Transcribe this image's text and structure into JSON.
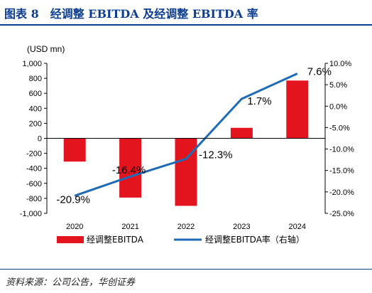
{
  "header": {
    "title": "图表 8　经调整 EBITDA 及经调整 EBITDA 率"
  },
  "footer": {
    "source": "资料来源：公司公告，华创证券"
  },
  "colors": {
    "bar": "#e3141d",
    "line": "#1e6bb8",
    "title": "#0b3d91"
  },
  "chart_data": {
    "type": "bar",
    "categories": [
      "2020",
      "2021",
      "2022",
      "2023",
      "2024"
    ],
    "series": [
      {
        "name": "经调整EBITDA",
        "type": "bar",
        "axis": "left",
        "values": [
          -310,
          -790,
          -900,
          140,
          770
        ]
      },
      {
        "name": "经调整EBITDA率（右轴）",
        "type": "line",
        "axis": "right",
        "values": [
          -20.9,
          -16.4,
          -12.3,
          1.7,
          7.6
        ],
        "labels": [
          "-20.9%",
          "-16.4%",
          "-12.3%",
          "1.7%",
          "7.6%"
        ]
      }
    ],
    "ylabel": "(USD mn)",
    "ylim": [
      -1000,
      1000
    ],
    "y_ticks": [
      -1000,
      -800,
      -600,
      -400,
      -200,
      0,
      200,
      400,
      600,
      800,
      1000
    ],
    "y_tick_labels": [
      "-1,000",
      "-800",
      "-600",
      "-400",
      "-200",
      "0",
      "200",
      "400",
      "600",
      "800",
      "1,000"
    ],
    "y2lim": [
      -25,
      10
    ],
    "y2_ticks": [
      -25,
      -20,
      -15,
      -10,
      -5,
      0,
      5,
      10
    ],
    "y2_tick_labels": [
      "-25.0%",
      "-20.0%",
      "-15.0%",
      "-10.0%",
      "-5.0%",
      "0.0%",
      "5.0%",
      "10.0%"
    ],
    "grid": false,
    "legend": "bottom"
  }
}
